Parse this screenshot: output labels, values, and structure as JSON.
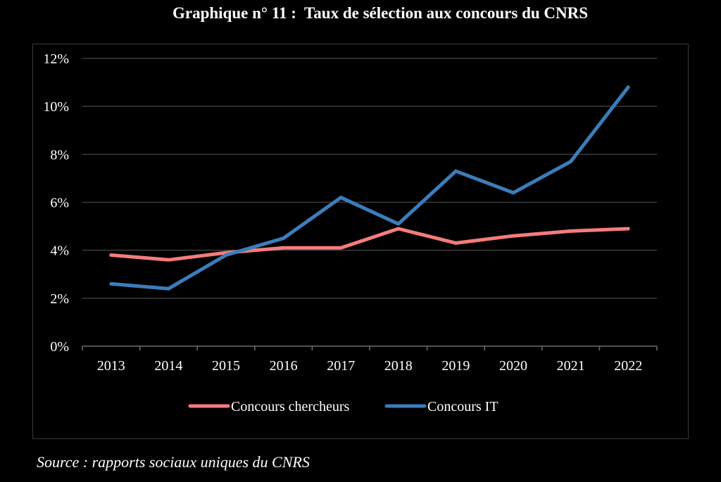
{
  "chart_data": {
    "type": "line",
    "title": "Graphique n° 11 :  Taux de sélection aux concours du CNRS",
    "source": "Source : rapports sociaux uniques du CNRS",
    "categories": [
      "2013",
      "2014",
      "2015",
      "2016",
      "2017",
      "2018",
      "2019",
      "2020",
      "2021",
      "2022"
    ],
    "ylim": [
      0,
      12
    ],
    "yticks": [
      "0%",
      "2%",
      "4%",
      "6%",
      "8%",
      "10%",
      "12%"
    ],
    "grid": true,
    "legend_position": "bottom",
    "series": [
      {
        "name": "Concours chercheurs",
        "color": "#f47c7c",
        "values": [
          3.8,
          3.6,
          3.9,
          4.1,
          4.1,
          4.9,
          4.3,
          4.6,
          4.8,
          4.9
        ]
      },
      {
        "name": "Concours IT",
        "color": "#3b7dbb",
        "values": [
          2.6,
          2.4,
          3.8,
          4.5,
          6.2,
          5.1,
          7.3,
          6.4,
          7.7,
          10.8
        ]
      }
    ]
  }
}
